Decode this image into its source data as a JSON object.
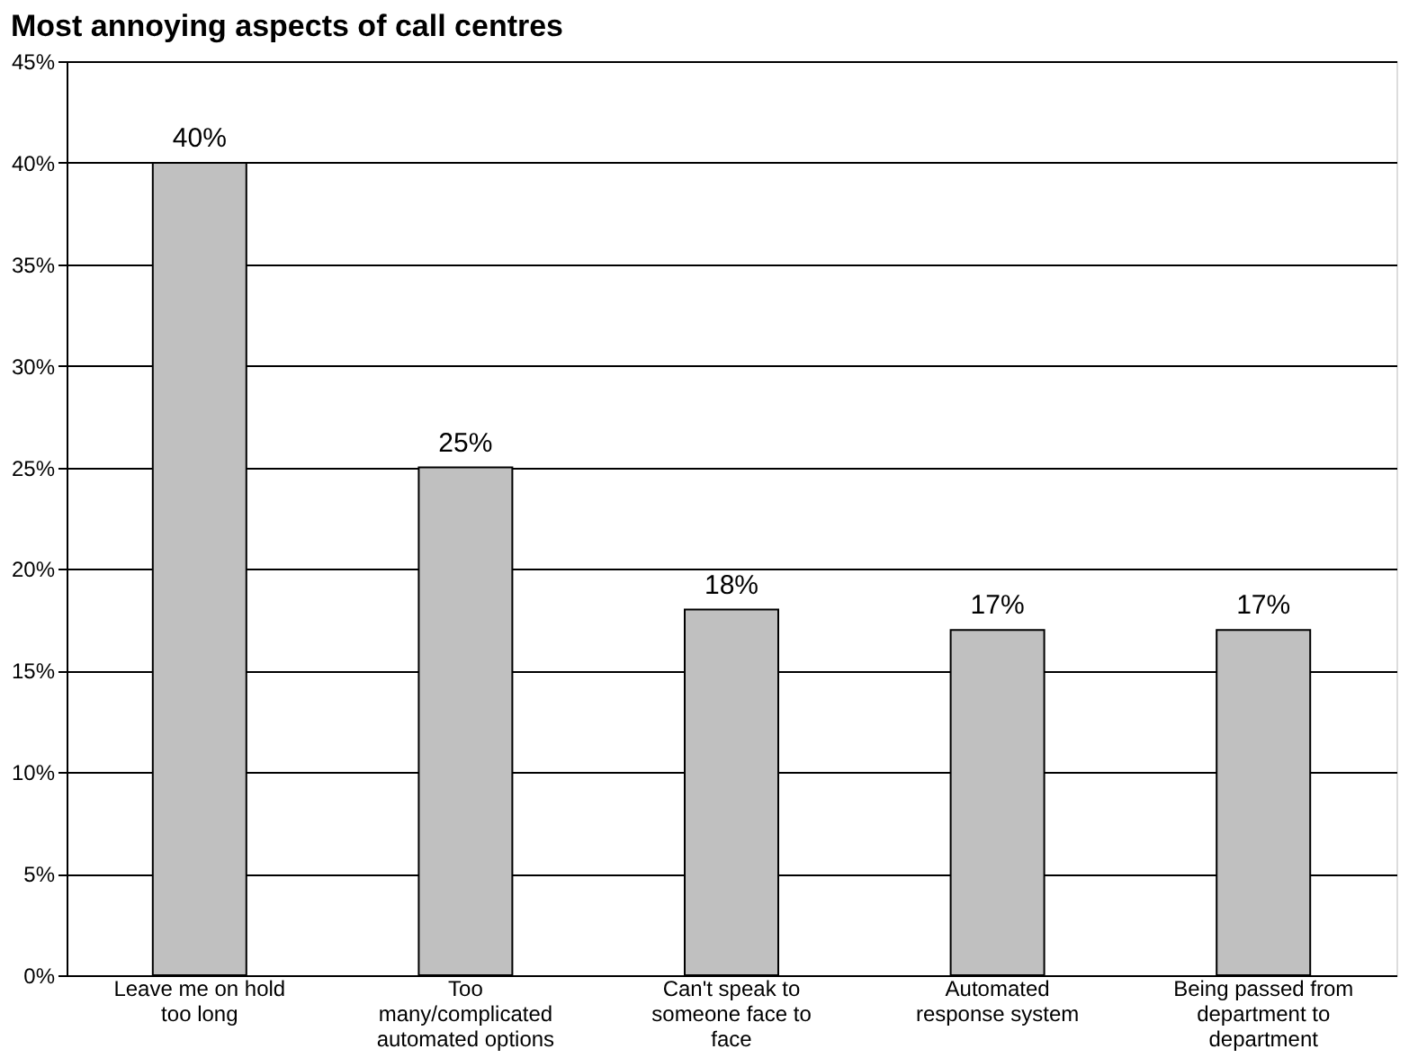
{
  "chart_data": {
    "type": "bar",
    "title": "Most annoying aspects of call centres",
    "categories": [
      "Leave me on hold too long",
      "Too many/complicated automated options",
      "Can't speak to someone face to face",
      "Automated response system",
      "Being passed from department to department"
    ],
    "values": [
      40,
      25,
      18,
      17,
      17
    ],
    "value_labels": [
      "40%",
      "25%",
      "18%",
      "17%",
      "17%"
    ],
    "color": "#c0c0c0",
    "ylim": [
      0,
      45
    ],
    "yticks": [
      {
        "value": 0,
        "label": "0%"
      },
      {
        "value": 5,
        "label": "5%"
      },
      {
        "value": 10,
        "label": "10%"
      },
      {
        "value": 15,
        "label": "15%"
      },
      {
        "value": 20,
        "label": "20%"
      },
      {
        "value": 25,
        "label": "25%"
      },
      {
        "value": 30,
        "label": "30%"
      },
      {
        "value": 35,
        "label": "35%"
      },
      {
        "value": 40,
        "label": "40%"
      },
      {
        "value": 45,
        "label": "45%"
      }
    ],
    "grid": "y"
  }
}
